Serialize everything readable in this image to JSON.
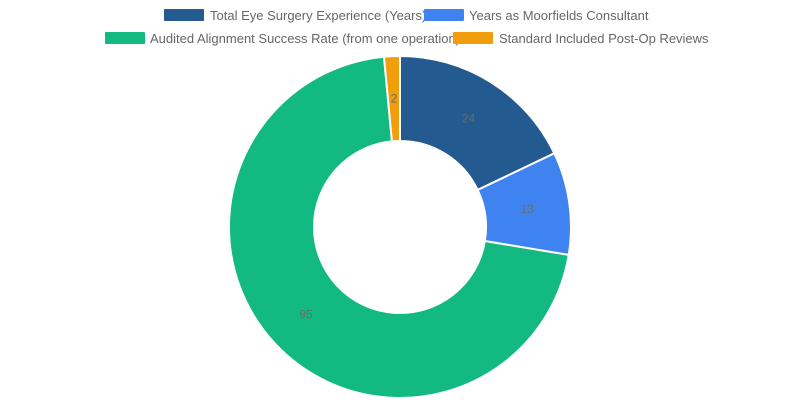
{
  "chart_data": {
    "type": "doughnut",
    "title": "",
    "legend_position": "top",
    "series": [
      {
        "name": "Total Eye Surgery Experience (Years)",
        "value": 24,
        "color": "#235a8f"
      },
      {
        "name": "Years as Moorfields Consultant",
        "value": 13,
        "color": "#3f83f0"
      },
      {
        "name": "Audited Alignment Success Rate (from one operation)",
        "value": 95,
        "color": "#12b981"
      },
      {
        "name": "Standard Included Post-Op Reviews",
        "value": 2,
        "color": "#f29e0c"
      }
    ]
  }
}
